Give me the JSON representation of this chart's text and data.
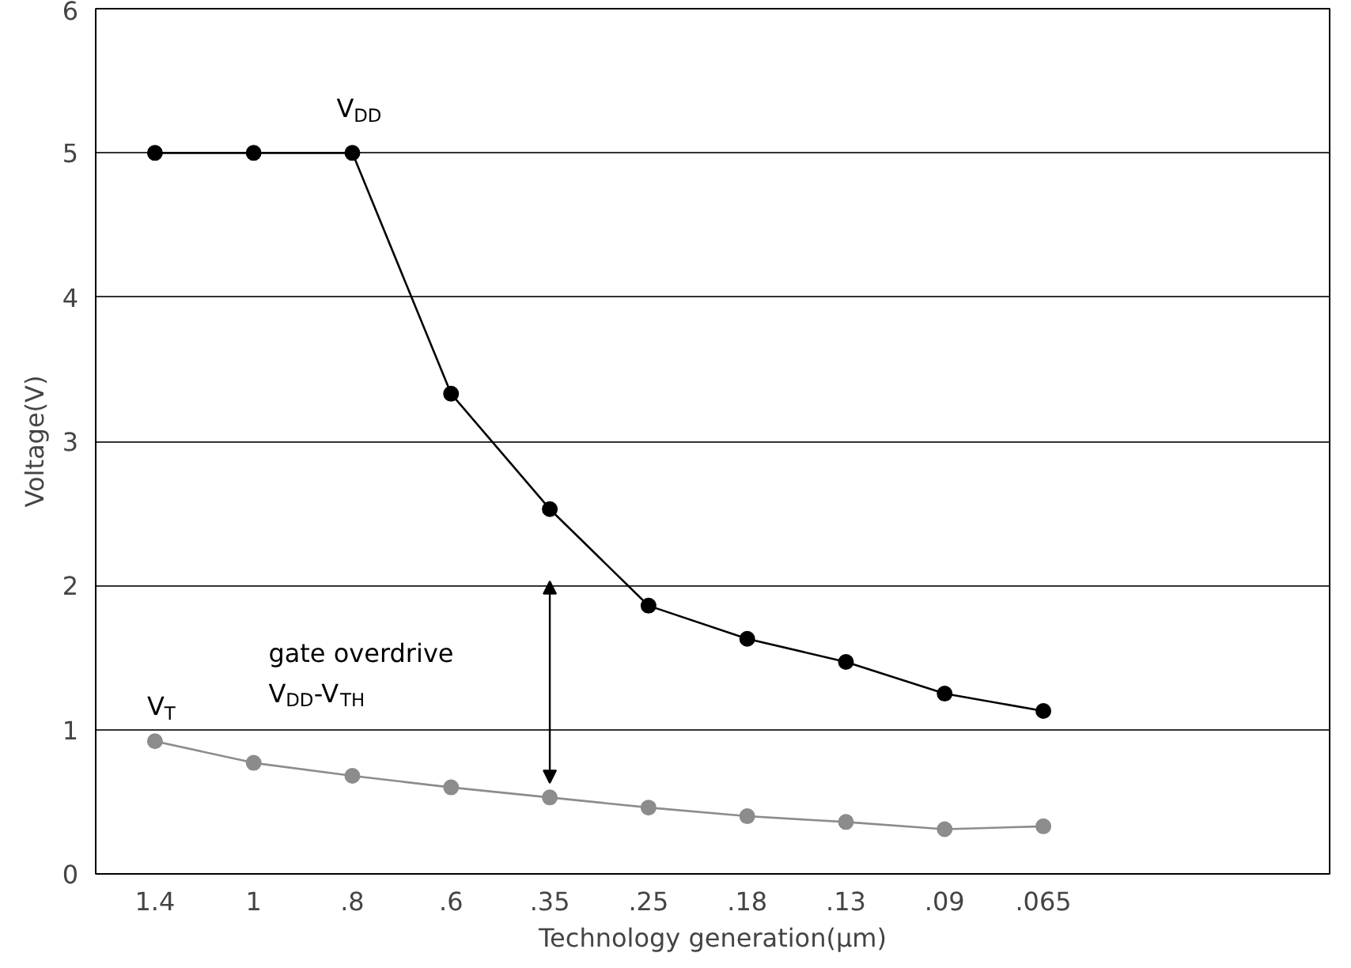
{
  "chart_data": {
    "type": "line",
    "xlabel": "Technology generation(µm)",
    "ylabel": "Voltage(V)",
    "categories": [
      "1.4",
      "1",
      ".8",
      ".6",
      ".35",
      ".25",
      ".18",
      ".13",
      ".09",
      ".065"
    ],
    "series": [
      {
        "name": "V$_{DD}$",
        "color": "#000000",
        "values": [
          5,
          5,
          5,
          3.33,
          2.53,
          1.86,
          1.63,
          1.47,
          1.25,
          1.13
        ]
      },
      {
        "name": "V$_{T}$",
        "color": "#8c8c8c",
        "values": [
          0.92,
          0.77,
          0.68,
          0.6,
          0.53,
          0.46,
          0.4,
          0.36,
          0.31,
          0.33
        ]
      }
    ],
    "ylim": [
      0,
      6
    ],
    "yticks": [
      0,
      1,
      2,
      3,
      4,
      5,
      6
    ],
    "grid": "y",
    "marker": "circle",
    "line_style": "solid",
    "annotations": [
      "gate overdrive",
      "V$_{DD}$-V$_{TH}$"
    ]
  }
}
